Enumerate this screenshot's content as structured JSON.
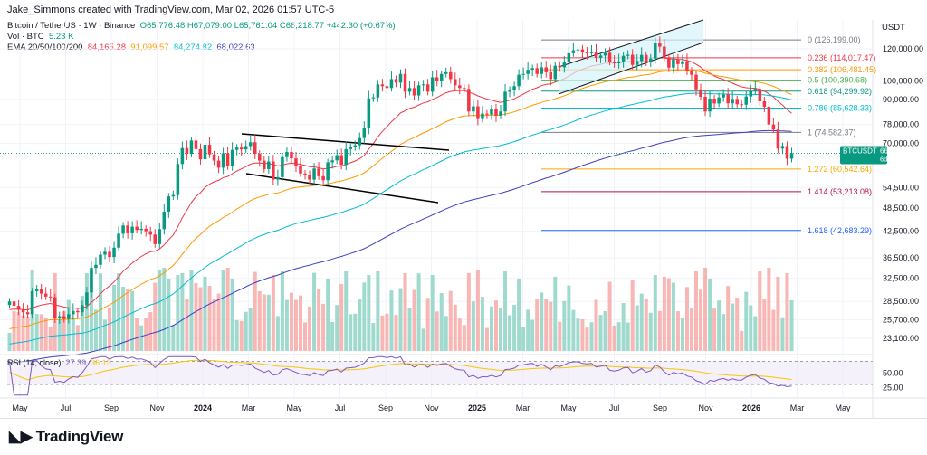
{
  "header": {
    "creator_text": "Jake_Simmons created with TradingView.com, Mar 02, 2026 01:57 UTC-5"
  },
  "legend": {
    "symbol": "Bitcoin / TetherUS · 1W · Binance",
    "ohlc": "O65,776.48 H67,079.00 L65,761.04 C66,218.77 +442.30 (+0.67%)",
    "vol_label": "Vol · BTC",
    "vol_value": "5.23 K",
    "ema_label": "EMA 20/50/100/200",
    "ema_values": [
      "84,165.28",
      "91,099.57",
      "84,274.82",
      "68,022.63"
    ],
    "ema_colors": [
      "#f23645",
      "#ff9800",
      "#00bcd4",
      "#3f3fbf"
    ]
  },
  "price_axis": {
    "unit": "USDT",
    "ticks": [
      "120,000.00",
      "100,000.00",
      "90,000.00",
      "78,000.00",
      "70,000.00",
      "54,500.00",
      "48,500.00",
      "42,500.00",
      "36,500.00",
      "32,500.00",
      "28,500.00",
      "25,700.00",
      "23,100.00"
    ],
    "last_price_symbol": "BTCUSDT",
    "last_price": "66,218.77",
    "countdown": "6d 18h",
    "rsi_ticks": [
      "50.00",
      "25.00"
    ]
  },
  "rsi": {
    "label": "RSI (14, close)",
    "value_a": "27.39",
    "value_b": "36.13"
  },
  "fib_levels": [
    {
      "label": "0 (126,199.00)",
      "color": "#787b86"
    },
    {
      "label": "0.236 (114,017.47)",
      "color": "#f23645"
    },
    {
      "label": "0.382 (106,481.45)",
      "color": "#ff9800"
    },
    {
      "label": "0.5 (100,390.68)",
      "color": "#4caf50"
    },
    {
      "label": "0.618 (94,299.92)",
      "color": "#089981"
    },
    {
      "label": "0.786 (85,628.33)",
      "color": "#00bcd4"
    },
    {
      "label": "1 (74,582.37)",
      "color": "#787b86"
    },
    {
      "label": "1.272 (60,542.64)",
      "color": "#f7a600"
    },
    {
      "label": "1.414 (53,213.08)",
      "color": "#b2124d"
    },
    {
      "label": "1.618 (42,683.29)",
      "color": "#2962ff"
    }
  ],
  "time_axis": {
    "labels": [
      "May",
      "Jul",
      "Sep",
      "Nov",
      "2024",
      "Mar",
      "May",
      "Jul",
      "Sep",
      "Nov",
      "2025",
      "Mar",
      "May",
      "Jul",
      "Sep",
      "Nov",
      "2026",
      "Mar",
      "May"
    ]
  },
  "footer": {
    "brand": "TradingView"
  },
  "chart_data": {
    "type": "candlestick",
    "interval": "1W",
    "x_start": "2023-04",
    "x_end": "2026-02",
    "close": [
      28500,
      27800,
      27200,
      26800,
      26500,
      30200,
      30500,
      29800,
      29300,
      29200,
      26000,
      26200,
      25800,
      26500,
      27000,
      26800,
      27900,
      30000,
      34500,
      35100,
      37200,
      37800,
      36700,
      38700,
      41900,
      43900,
      42000,
      43600,
      42800,
      43100,
      42500,
      41700,
      39500,
      43000,
      47500,
      51800,
      52200,
      62300,
      68200,
      66000,
      71200,
      67800,
      64000,
      69500,
      65800,
      63500,
      61000,
      66200,
      61500,
      67500,
      68400,
      67700,
      69000,
      70500,
      66000,
      63500,
      60500,
      63200,
      57000,
      57800,
      64800,
      66700,
      64300,
      61700,
      59000,
      58500,
      57000,
      60700,
      58100,
      56800,
      62900,
      63600,
      65500,
      62000,
      67800,
      68600,
      69300,
      72200,
      76500,
      90500,
      91000,
      98000,
      97000,
      96000,
      101000,
      99000,
      104000,
      94000,
      96000,
      92000,
      97500,
      98000,
      94000,
      102000,
      100000,
      104000,
      105000,
      101000,
      97500,
      96000,
      95500,
      84000,
      86500,
      80500,
      83000,
      82500,
      85000,
      82000,
      84000,
      94000,
      95000,
      97000,
      103500,
      104000,
      106500,
      107500,
      104000,
      108000,
      105000,
      101000,
      109000,
      108000,
      111500,
      117000,
      119000,
      119500,
      117500,
      117000,
      118000,
      114000,
      115500,
      117300,
      111500,
      110500,
      111700,
      115300,
      116000,
      109500,
      112000,
      115900,
      111000,
      113500,
      124000,
      121500,
      114200,
      107800,
      113000,
      110000,
      111800,
      106000,
      103500,
      95300,
      91300,
      84000,
      90400,
      87900,
      91000,
      92500,
      88000,
      90200,
      87500,
      87300,
      91500,
      94200,
      95500,
      89000,
      86300,
      78000,
      75800,
      68000,
      69000,
      64200,
      66200
    ],
    "ema": [
      {
        "name": "EMA 20",
        "last": 84165.28
      },
      {
        "name": "EMA 50",
        "last": 91099.57
      },
      {
        "name": "EMA 100",
        "last": 84274.82
      },
      {
        "name": "EMA 200",
        "last": 68022.63
      }
    ],
    "fibonacci": [
      {
        "ratio": 0,
        "price": 126199.0
      },
      {
        "ratio": 0.236,
        "price": 114017.47
      },
      {
        "ratio": 0.382,
        "price": 106481.45
      },
      {
        "ratio": 0.5,
        "price": 100390.68
      },
      {
        "ratio": 0.618,
        "price": 94299.92
      },
      {
        "ratio": 0.786,
        "price": 85628.33
      },
      {
        "ratio": 1,
        "price": 74582.37
      },
      {
        "ratio": 1.272,
        "price": 60542.64
      },
      {
        "ratio": 1.414,
        "price": 53213.08
      },
      {
        "ratio": 1.618,
        "price": 42683.29
      }
    ],
    "y_scale": "log",
    "ylim": [
      21500,
      140000
    ],
    "rsi_value": 27.39,
    "rsi_ylim": [
      10,
      80
    ]
  }
}
